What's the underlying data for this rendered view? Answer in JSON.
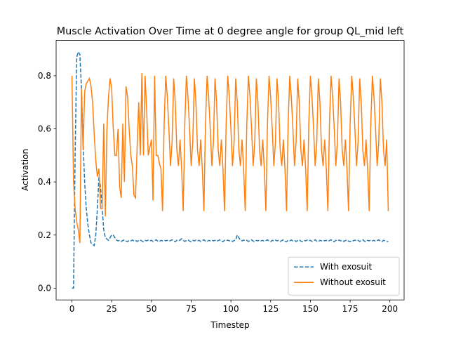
{
  "chart_data": {
    "type": "line",
    "title": "Muscle Activation Over Time at 0 degree angle for group QL_mid left",
    "xlabel": "Timestep",
    "ylabel": "Activation",
    "x": [
      0,
      1,
      2,
      3,
      4,
      5,
      6,
      7,
      8,
      9,
      10,
      11,
      12,
      13,
      14,
      15,
      16,
      17,
      18,
      19,
      20,
      21,
      22,
      23,
      24,
      25,
      26,
      27,
      28,
      29,
      30,
      31,
      32,
      33,
      34,
      35,
      36,
      37,
      38,
      39,
      40,
      41,
      42,
      43,
      44,
      45,
      46,
      47,
      48,
      49,
      50,
      51,
      52,
      53,
      54,
      55,
      56,
      57,
      58,
      59,
      60,
      61,
      62,
      63,
      64,
      65,
      66,
      67,
      68,
      69,
      70,
      71,
      72,
      73,
      74,
      75,
      76,
      77,
      78,
      79,
      80,
      81,
      82,
      83,
      84,
      85,
      86,
      87,
      88,
      89,
      90,
      91,
      92,
      93,
      94,
      95,
      96,
      97,
      98,
      99,
      100,
      101,
      102,
      103,
      104,
      105,
      106,
      107,
      108,
      109,
      110,
      111,
      112,
      113,
      114,
      115,
      116,
      117,
      118,
      119,
      120,
      121,
      122,
      123,
      124,
      125,
      126,
      127,
      128,
      129,
      130,
      131,
      132,
      133,
      134,
      135,
      136,
      137,
      138,
      139,
      140,
      141,
      142,
      143,
      144,
      145,
      146,
      147,
      148,
      149,
      150,
      151,
      152,
      153,
      154,
      155,
      156,
      157,
      158,
      159,
      160,
      161,
      162,
      163,
      164,
      165,
      166,
      167,
      168,
      169,
      170,
      171,
      172,
      173,
      174,
      175,
      176,
      177,
      178,
      179,
      180,
      181,
      182,
      183,
      184,
      185,
      186,
      187,
      188,
      189,
      190,
      191,
      192,
      193,
      194,
      195,
      196,
      197,
      198,
      199
    ],
    "series": [
      {
        "name": "With exosuit",
        "color": "#1f77b4",
        "dash": "dashed",
        "values": [
          0,
          0,
          0.5,
          0.87,
          0.89,
          0.88,
          0.75,
          0.55,
          0.4,
          0.3,
          0.24,
          0.2,
          0.17,
          0.165,
          0.16,
          0.2,
          0.3,
          0.42,
          0.38,
          0.3,
          0.22,
          0.19,
          0.185,
          0.18,
          0.19,
          0.2,
          0.2,
          0.19,
          0.181,
          0.178,
          0.18,
          0.176,
          0.179,
          0.182,
          0.177,
          0.175,
          0.18,
          0.178,
          0.181,
          0.178,
          0.18,
          0.176,
          0.179,
          0.182,
          0.177,
          0.175,
          0.18,
          0.178,
          0.181,
          0.178,
          0.18,
          0.176,
          0.179,
          0.182,
          0.177,
          0.175,
          0.18,
          0.178,
          0.181,
          0.178,
          0.18,
          0.176,
          0.179,
          0.182,
          0.177,
          0.175,
          0.18,
          0.178,
          0.181,
          0.186,
          0.18,
          0.176,
          0.179,
          0.182,
          0.177,
          0.175,
          0.18,
          0.178,
          0.181,
          0.178,
          0.18,
          0.176,
          0.179,
          0.182,
          0.177,
          0.175,
          0.18,
          0.178,
          0.181,
          0.178,
          0.18,
          0.176,
          0.179,
          0.182,
          0.177,
          0.175,
          0.18,
          0.178,
          0.181,
          0.178,
          0.18,
          0.176,
          0.179,
          0.182,
          0.2,
          0.19,
          0.18,
          0.178,
          0.181,
          0.178,
          0.18,
          0.176,
          0.179,
          0.182,
          0.177,
          0.175,
          0.18,
          0.178,
          0.181,
          0.178,
          0.18,
          0.176,
          0.179,
          0.182,
          0.177,
          0.175,
          0.18,
          0.178,
          0.181,
          0.178,
          0.18,
          0.176,
          0.179,
          0.182,
          0.177,
          0.175,
          0.18,
          0.178,
          0.181,
          0.178,
          0.18,
          0.176,
          0.179,
          0.182,
          0.177,
          0.175,
          0.18,
          0.178,
          0.181,
          0.178,
          0.18,
          0.176,
          0.179,
          0.182,
          0.177,
          0.175,
          0.18,
          0.178,
          0.181,
          0.178,
          0.18,
          0.176,
          0.179,
          0.182,
          0.177,
          0.175,
          0.18,
          0.178,
          0.181,
          0.178,
          0.18,
          0.176,
          0.179,
          0.182,
          0.177,
          0.175,
          0.18,
          0.178,
          0.181,
          0.178,
          0.18,
          0.176,
          0.179,
          0.182,
          0.177,
          0.175,
          0.18,
          0.178,
          0.181,
          0.178,
          0.18,
          0.176,
          0.179,
          0.182,
          0.177,
          0.175,
          0.18,
          0.178,
          0.176,
          0.175
        ]
      },
      {
        "name": "Without exosuit",
        "color": "#ff7f0e",
        "dash": "solid",
        "values": [
          0.8,
          0.4,
          0.3,
          0.25,
          0.22,
          0.17,
          0.75,
          0.52,
          0.74,
          0.77,
          0.78,
          0.79,
          0.76,
          0.7,
          0.58,
          0.48,
          0.42,
          0.45,
          0.3,
          0.3,
          0.62,
          0.27,
          0.6,
          0.72,
          0.79,
          0.75,
          0.6,
          0.5,
          0.5,
          0.6,
          0.38,
          0.34,
          0.62,
          0.4,
          0.76,
          0.72,
          0.6,
          0.5,
          0.46,
          0.35,
          0.34,
          0.53,
          0.7,
          0.5,
          0.81,
          0.5,
          0.8,
          0.67,
          0.5,
          0.53,
          0.56,
          0.33,
          0.8,
          0.5,
          0.5,
          0.47,
          0.45,
          0.29,
          0.62,
          0.8,
          0.72,
          0.6,
          0.46,
          0.55,
          0.79,
          0.7,
          0.52,
          0.46,
          0.56,
          0.45,
          0.29,
          0.62,
          0.8,
          0.72,
          0.6,
          0.46,
          0.55,
          0.79,
          0.7,
          0.52,
          0.46,
          0.56,
          0.45,
          0.29,
          0.62,
          0.8,
          0.72,
          0.6,
          0.46,
          0.55,
          0.79,
          0.7,
          0.52,
          0.46,
          0.56,
          0.45,
          0.29,
          0.62,
          0.8,
          0.72,
          0.6,
          0.46,
          0.55,
          0.79,
          0.7,
          0.52,
          0.46,
          0.56,
          0.45,
          0.29,
          0.62,
          0.8,
          0.72,
          0.6,
          0.46,
          0.55,
          0.79,
          0.7,
          0.52,
          0.46,
          0.56,
          0.45,
          0.29,
          0.62,
          0.8,
          0.72,
          0.6,
          0.46,
          0.55,
          0.79,
          0.7,
          0.52,
          0.46,
          0.56,
          0.45,
          0.29,
          0.62,
          0.8,
          0.72,
          0.6,
          0.46,
          0.55,
          0.79,
          0.7,
          0.52,
          0.46,
          0.56,
          0.45,
          0.29,
          0.62,
          0.8,
          0.72,
          0.6,
          0.46,
          0.55,
          0.79,
          0.7,
          0.52,
          0.46,
          0.56,
          0.45,
          0.29,
          0.62,
          0.8,
          0.72,
          0.6,
          0.46,
          0.55,
          0.79,
          0.7,
          0.52,
          0.46,
          0.56,
          0.45,
          0.29,
          0.62,
          0.8,
          0.72,
          0.6,
          0.46,
          0.55,
          0.79,
          0.7,
          0.52,
          0.46,
          0.56,
          0.45,
          0.29,
          0.62,
          0.8,
          0.72,
          0.6,
          0.46,
          0.55,
          0.79,
          0.7,
          0.52,
          0.46,
          0.56,
          0.29
        ]
      }
    ],
    "xlim": [
      -9.95,
      208.95
    ],
    "xticks": [
      0,
      25,
      50,
      75,
      100,
      125,
      150,
      175,
      200
    ],
    "ylim": [
      -0.0445,
      0.933
    ],
    "yticks": [
      {
        "value": 0,
        "label": "0.0"
      },
      0.2,
      0.4,
      0.6,
      0.8
    ],
    "grid": false,
    "legend": "lower right"
  }
}
